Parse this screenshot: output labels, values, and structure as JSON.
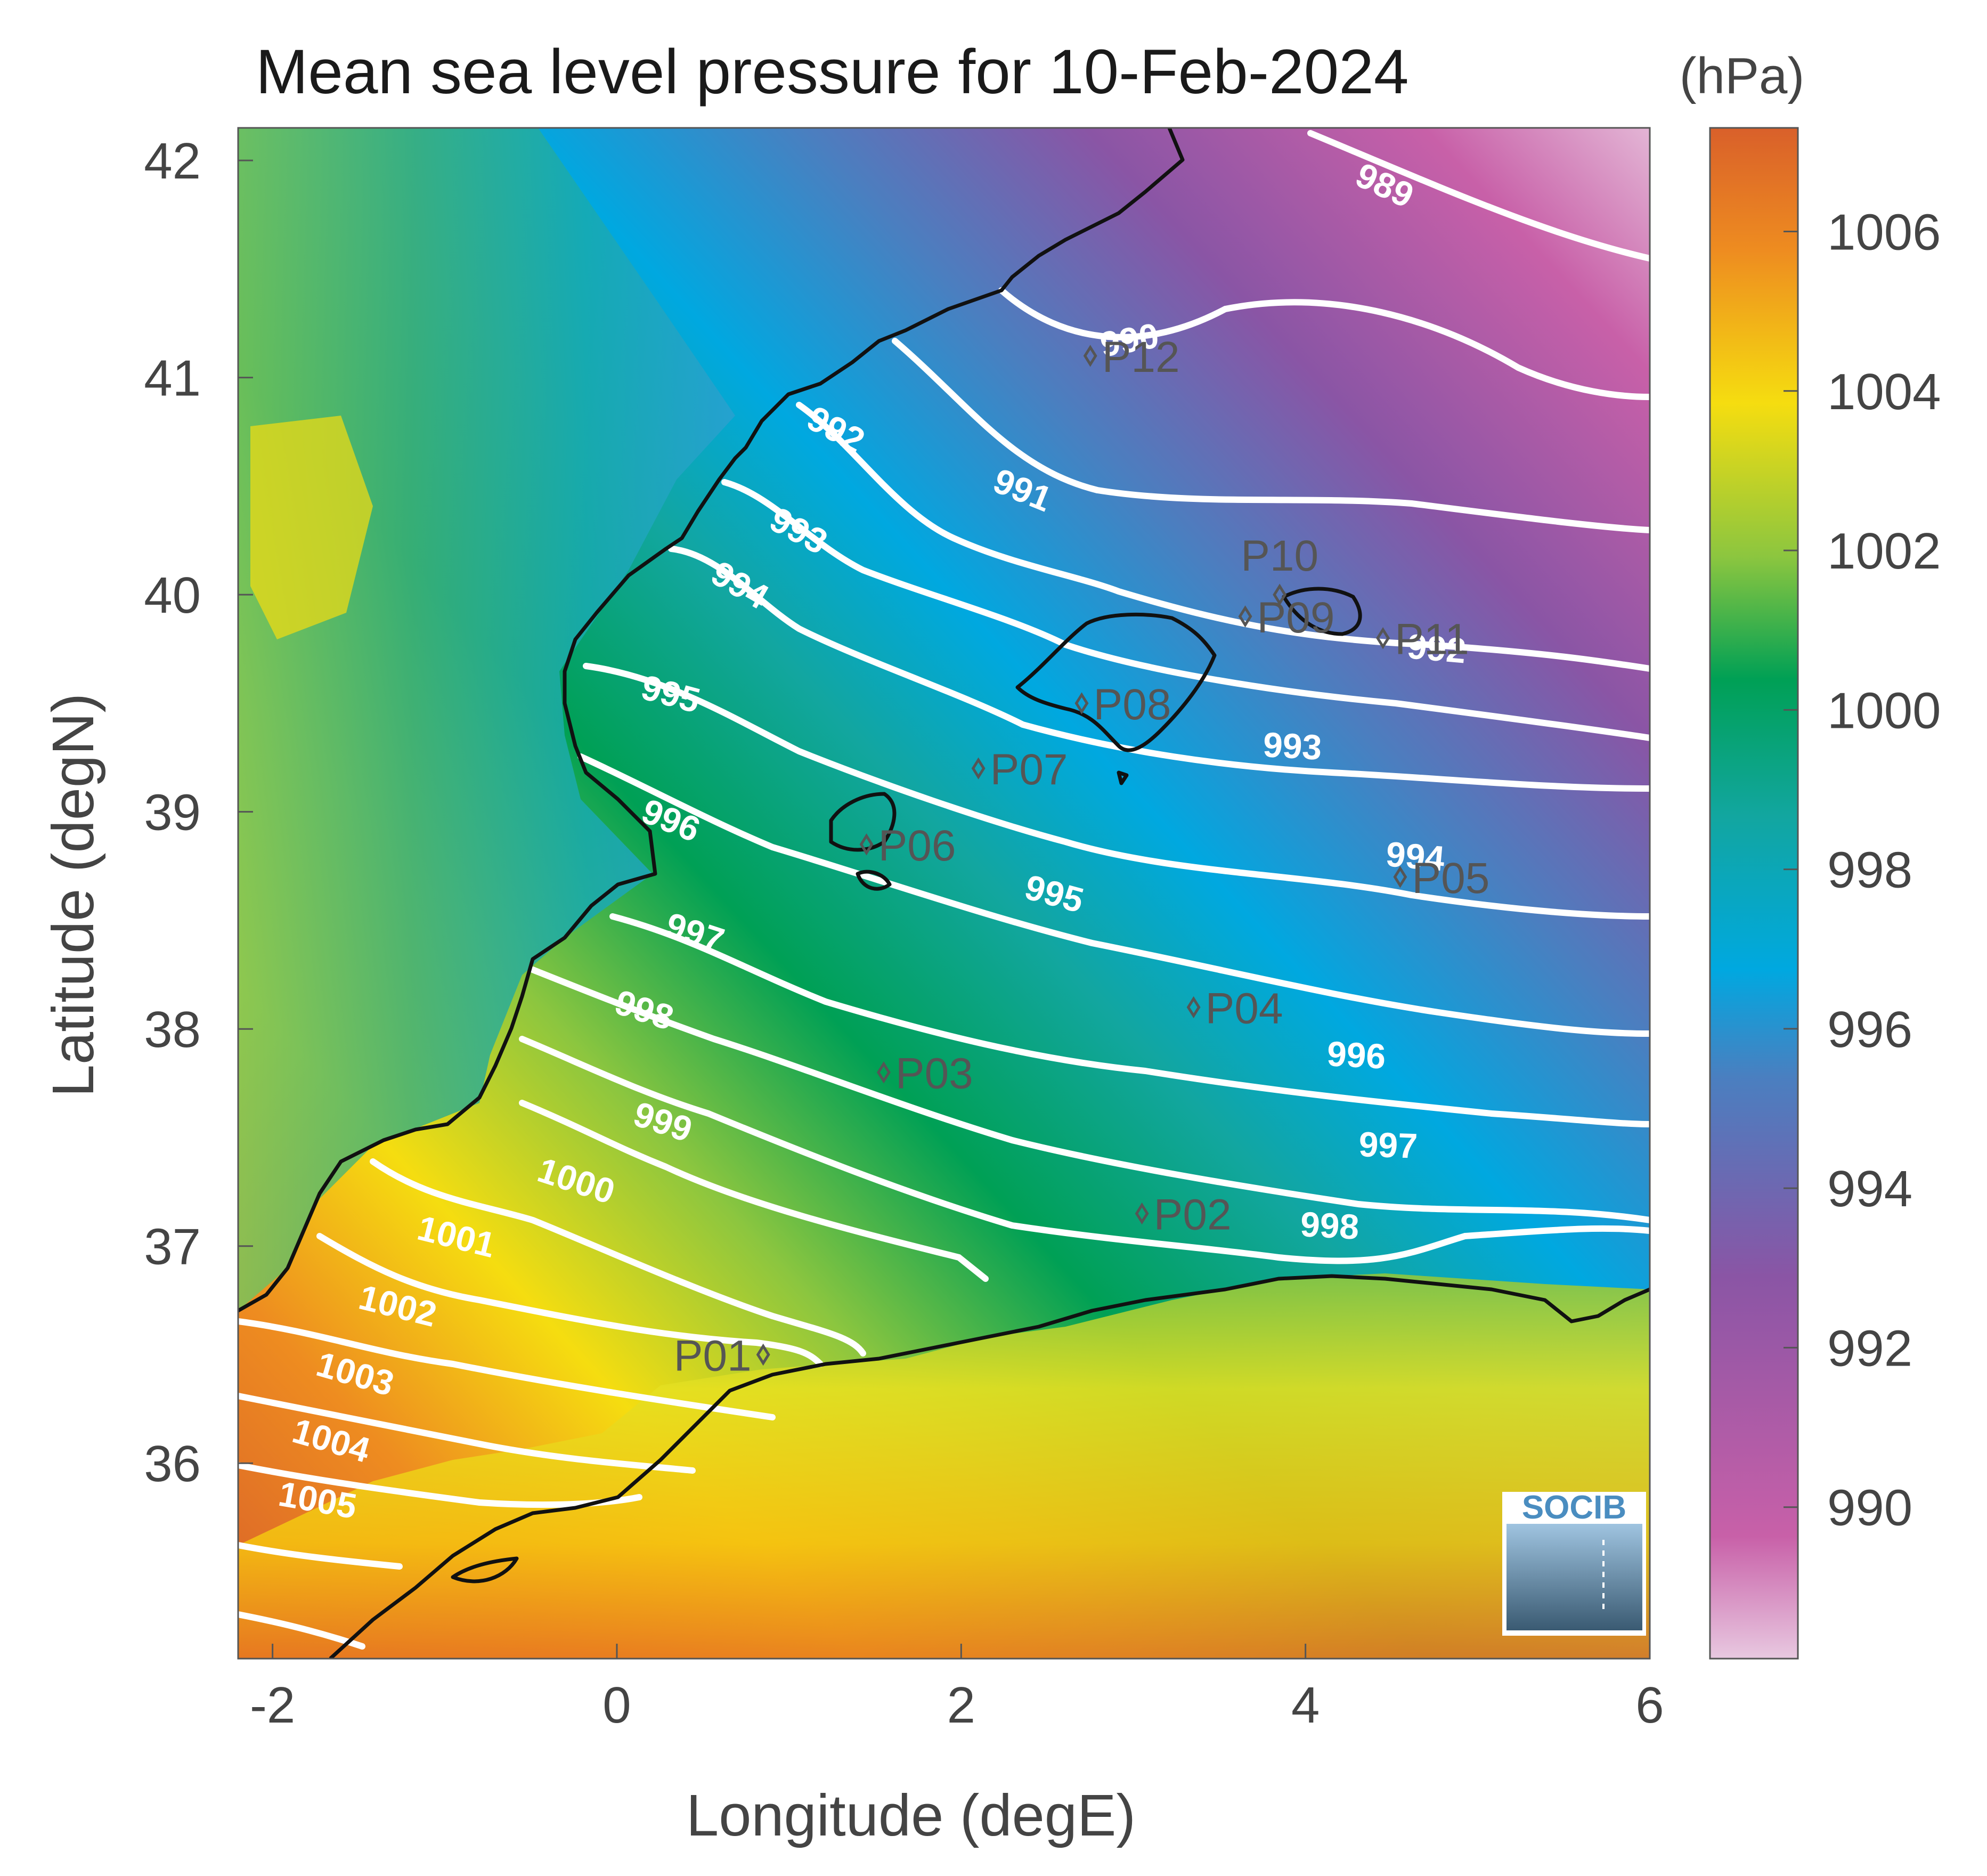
{
  "title": "Mean sea level pressure for 10-Feb-2024",
  "colorbar": {
    "unit": "(hPa)",
    "ticks": [
      "1006",
      "1004",
      "1002",
      "1000",
      "998",
      "996",
      "994",
      "992",
      "990"
    ]
  },
  "axes": {
    "xlabel": "Longitude (degE)",
    "ylabel": "Latitude (degN)",
    "xticks": [
      "-2",
      "0",
      "2",
      "4",
      "6"
    ],
    "yticks": [
      "42",
      "41",
      "40",
      "39",
      "38",
      "37",
      "36"
    ]
  },
  "contour_labels": [
    "989",
    "990",
    "991",
    "992",
    "992",
    "993",
    "993",
    "994",
    "994",
    "995",
    "995",
    "996",
    "996",
    "997",
    "997",
    "998",
    "998",
    "998",
    "999",
    "1000",
    "1001",
    "1002",
    "1003",
    "1004",
    "1005"
  ],
  "stations": [
    {
      "id": "P01",
      "lon": 0.85,
      "lat": 36.5
    },
    {
      "id": "P02",
      "lon": 3.05,
      "lat": 37.15
    },
    {
      "id": "P03",
      "lon": 1.55,
      "lat": 37.8
    },
    {
      "id": "P04",
      "lon": 3.35,
      "lat": 38.1
    },
    {
      "id": "P05",
      "lon": 4.55,
      "lat": 38.7
    },
    {
      "id": "P06",
      "lon": 1.45,
      "lat": 38.85
    },
    {
      "id": "P07",
      "lon": 2.1,
      "lat": 39.2
    },
    {
      "id": "P08",
      "lon": 2.7,
      "lat": 39.5
    },
    {
      "id": "P09",
      "lon": 3.65,
      "lat": 39.9
    },
    {
      "id": "P10",
      "lon": 3.85,
      "lat": 40.0
    },
    {
      "id": "P11",
      "lon": 4.45,
      "lat": 39.8
    },
    {
      "id": "P12",
      "lon": 2.75,
      "lat": 41.1
    }
  ],
  "logo": "SOCIB",
  "colors": {
    "high": "#d9602a",
    "mid": "#00a055",
    "low": "#00a8e0",
    "min": "#c860a8",
    "isobar": "#ffffff",
    "coast": "#111111"
  }
}
